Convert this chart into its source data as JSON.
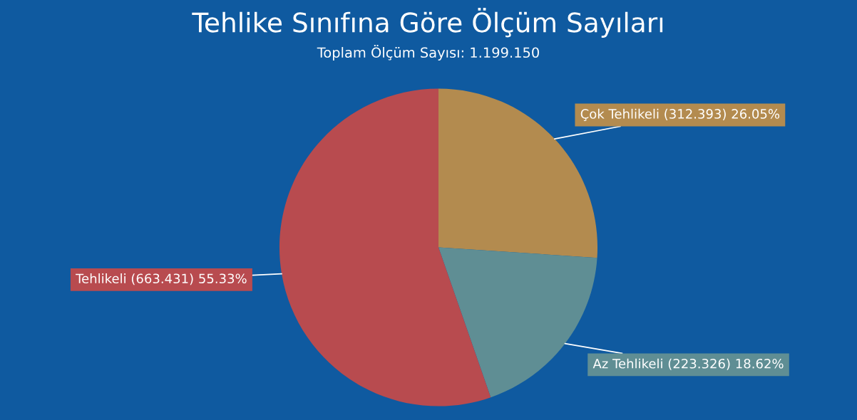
{
  "chart_data": {
    "type": "pie",
    "title": "Tehlike Sınıfına Göre Ölçüm Sayıları",
    "subtitle": "Toplam Ölçüm Sayısı: 1.199.150",
    "categories": [
      "Çok Tehlikeli",
      "Az Tehlikeli",
      "Tehlikeli"
    ],
    "values": [
      26.05,
      18.62,
      55.33
    ],
    "colors": [
      "#b38b4f",
      "#5f8e94",
      "#b84b4f"
    ],
    "value_labels": [
      "(312.393) 26.05%",
      "(223.326) 18.62%",
      "(663.431) 55.33%"
    ],
    "legend": false
  }
}
